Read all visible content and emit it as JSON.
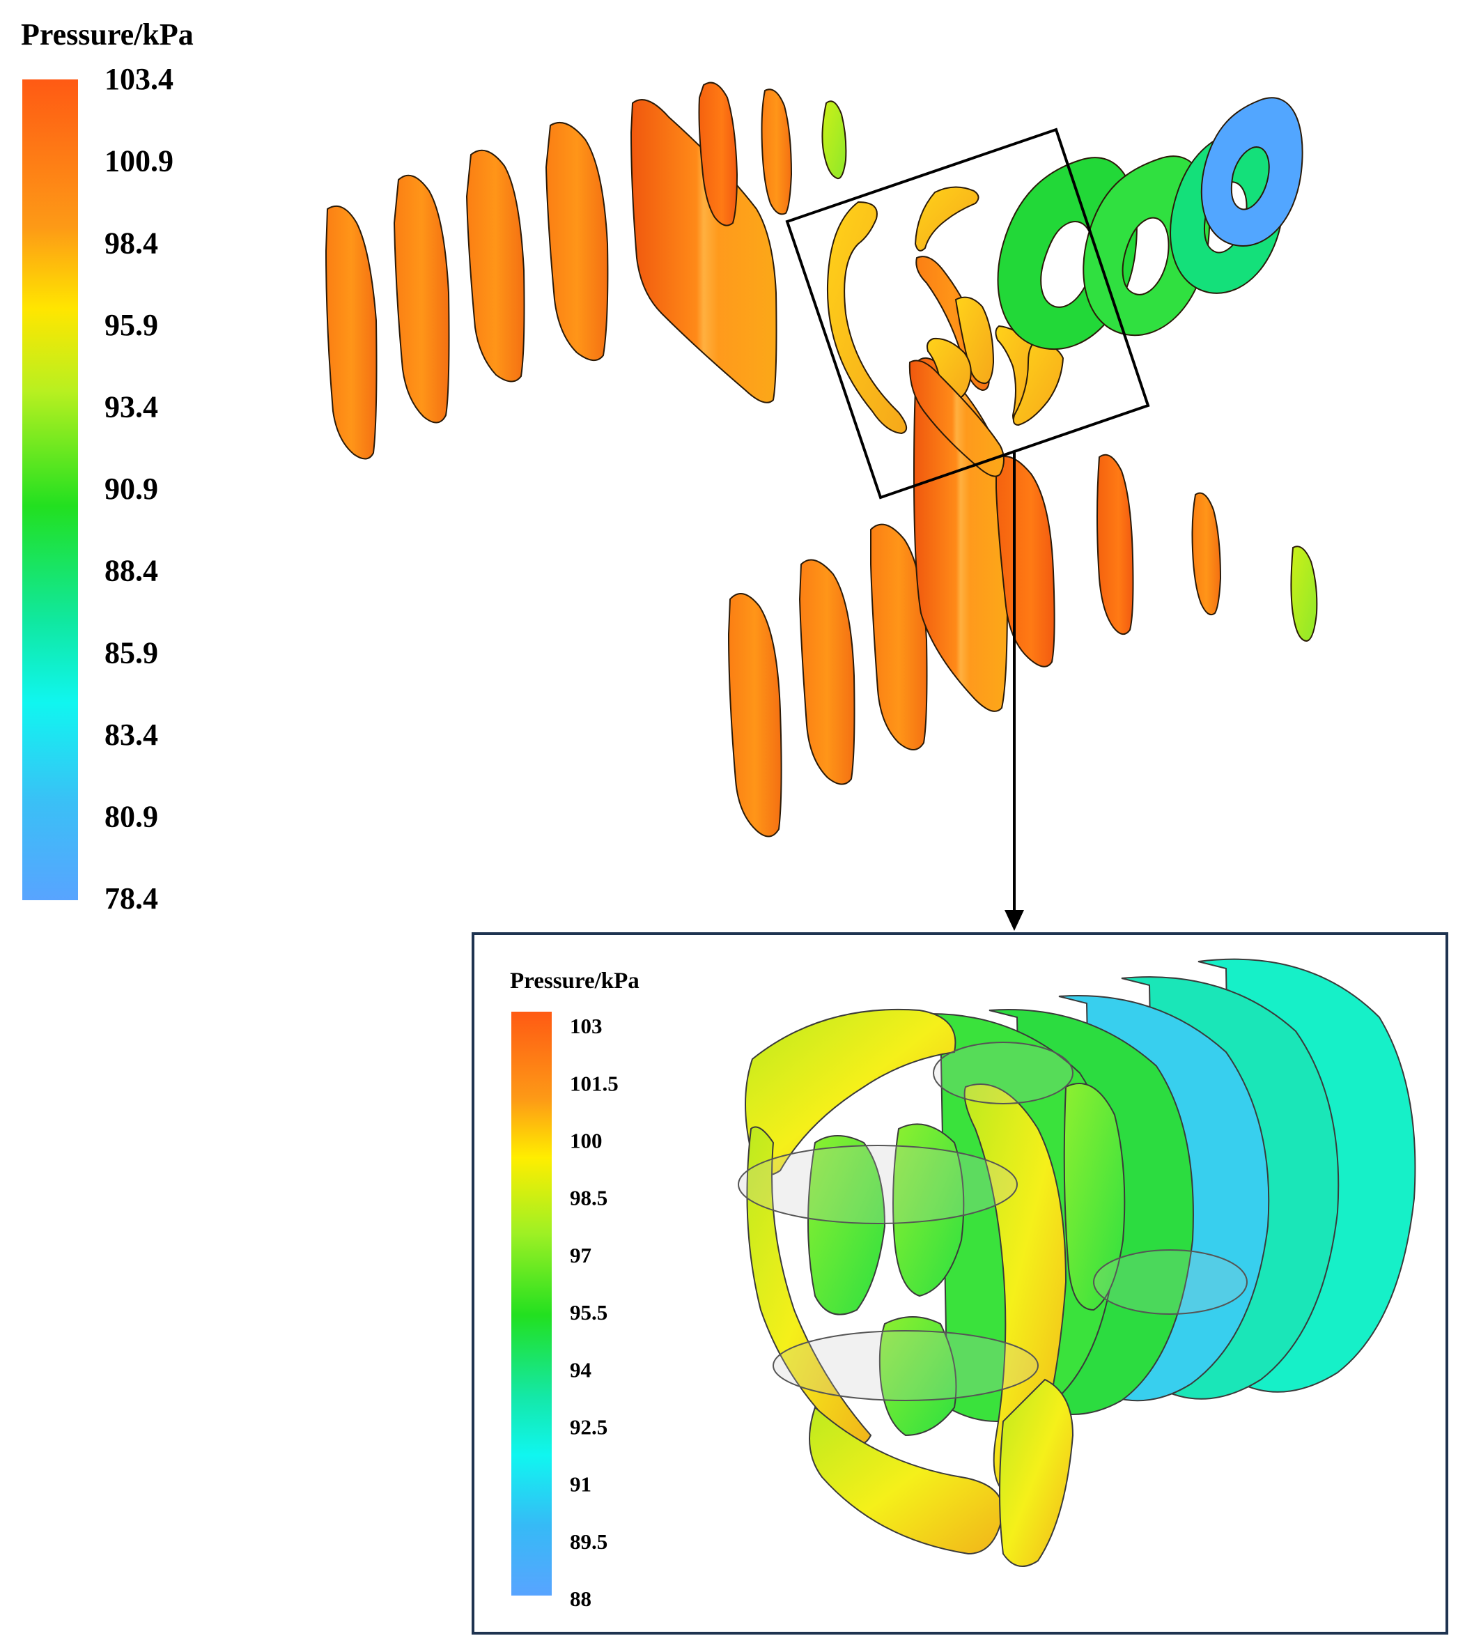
{
  "main_legend": {
    "title": "Pressure/kPa",
    "ticks": [
      "103.4",
      "100.9",
      "98.4",
      "95.9",
      "93.4",
      "90.9",
      "88.4",
      "85.9",
      "83.4",
      "80.9",
      "78.4"
    ]
  },
  "inset_legend": {
    "title": "Pressure/kPa",
    "ticks": [
      "103",
      "101.5",
      "100",
      "98.5",
      "97",
      "95.5",
      "94",
      "92.5",
      "91",
      "89.5",
      "88"
    ]
  },
  "colors": {
    "scale": [
      "#ff5a14",
      "#fe7a16",
      "#fdae14",
      "#ffee00",
      "#b4f01c",
      "#3ce61e",
      "#14e07a",
      "#10f3d0",
      "#20c8f0",
      "#52a6ff"
    ],
    "frame": "#000000",
    "inset_frame": "#1e3350"
  }
}
